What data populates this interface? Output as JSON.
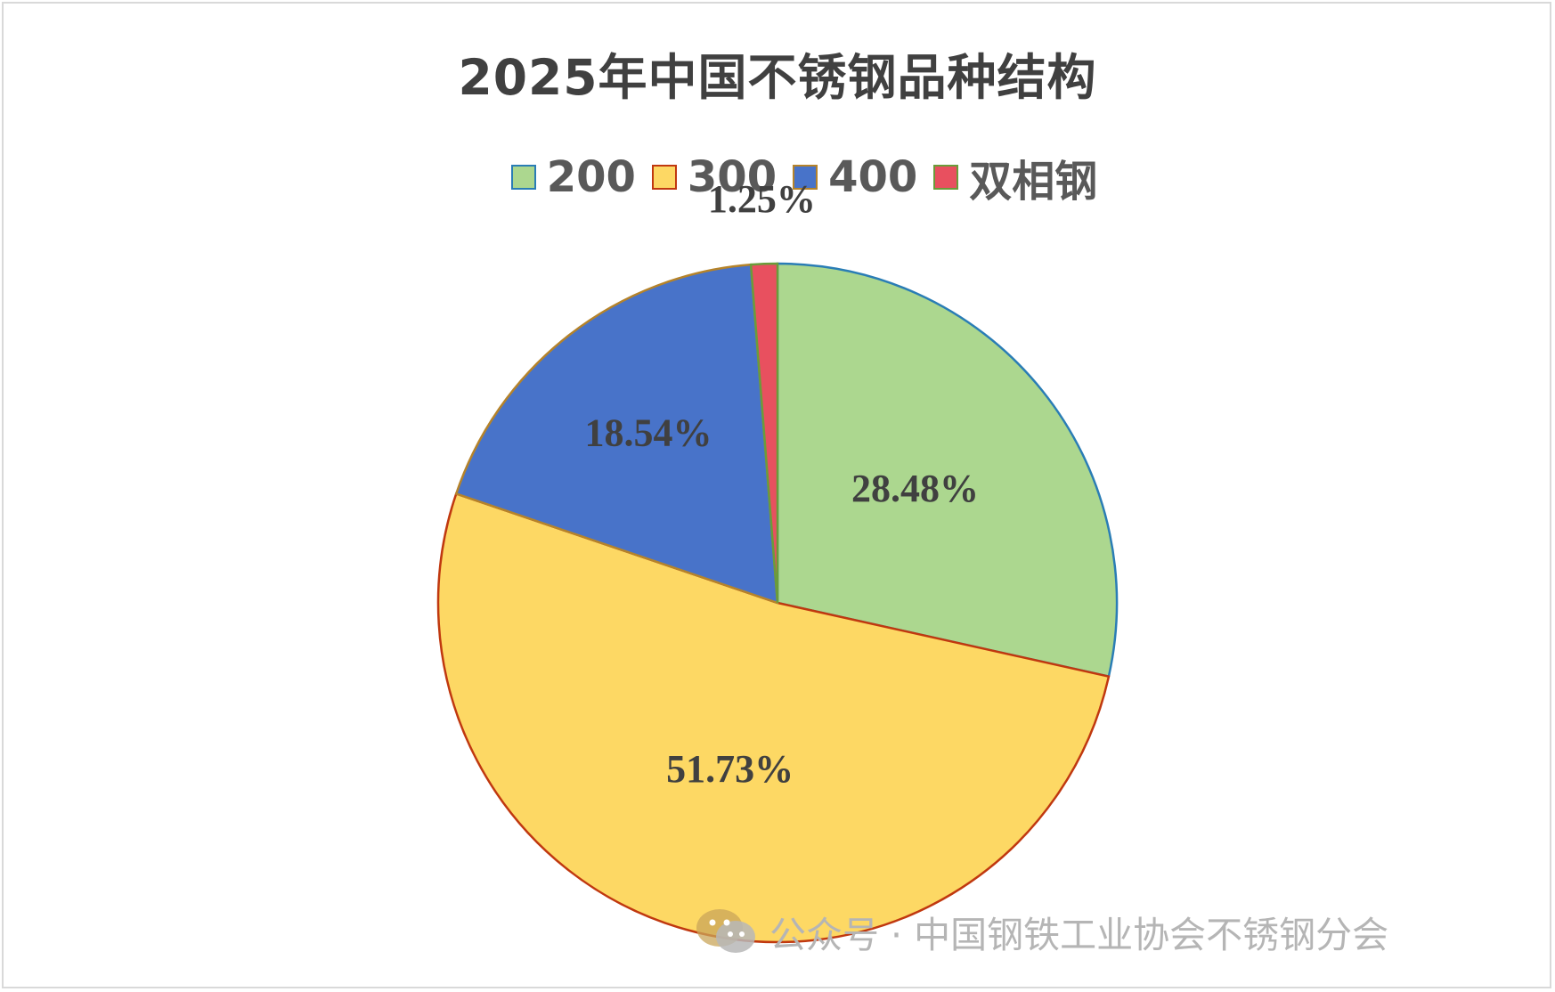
{
  "chart_data": {
    "type": "pie",
    "title": "2025年中国不锈钢品种结构",
    "categories": [
      "200",
      "300",
      "400",
      "双相钢"
    ],
    "values": [
      28.48,
      51.73,
      18.54,
      1.25
    ],
    "labels": [
      "28.48%",
      "51.73%",
      "18.54%",
      "1.25%"
    ],
    "colors": [
      "#acd78f",
      "#fdd864",
      "#4873c9",
      "#e8505f"
    ],
    "edge_colors": [
      "#2a7db5",
      "#c0380f",
      "#b5832a",
      "#6a9c3a"
    ],
    "legend_position": "top"
  },
  "watermark": {
    "text": "公众号 · 中国钢铁工业协会不锈钢分会",
    "icon": "wechat-icon"
  }
}
